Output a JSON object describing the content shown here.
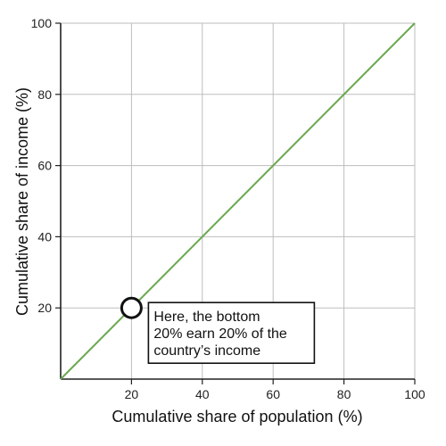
{
  "chart_data": {
    "type": "line",
    "title": "",
    "xlabel": "Cumulative share of population (%)",
    "ylabel": "Cumulative share of income (%)",
    "xlim": [
      0,
      100
    ],
    "ylim": [
      0,
      100
    ],
    "xticks": [
      20,
      40,
      60,
      80,
      100
    ],
    "yticks": [
      20,
      40,
      60,
      80,
      100
    ],
    "grid": true,
    "series": [
      {
        "x": [
          0,
          100
        ],
        "y": [
          0,
          100
        ],
        "color": "#6aa84f"
      }
    ],
    "highlight_point": {
      "x": 20,
      "y": 20
    },
    "annotation": {
      "lines": [
        "Here, the bottom",
        "20% earn 20% of the",
        "country’s income"
      ]
    }
  }
}
